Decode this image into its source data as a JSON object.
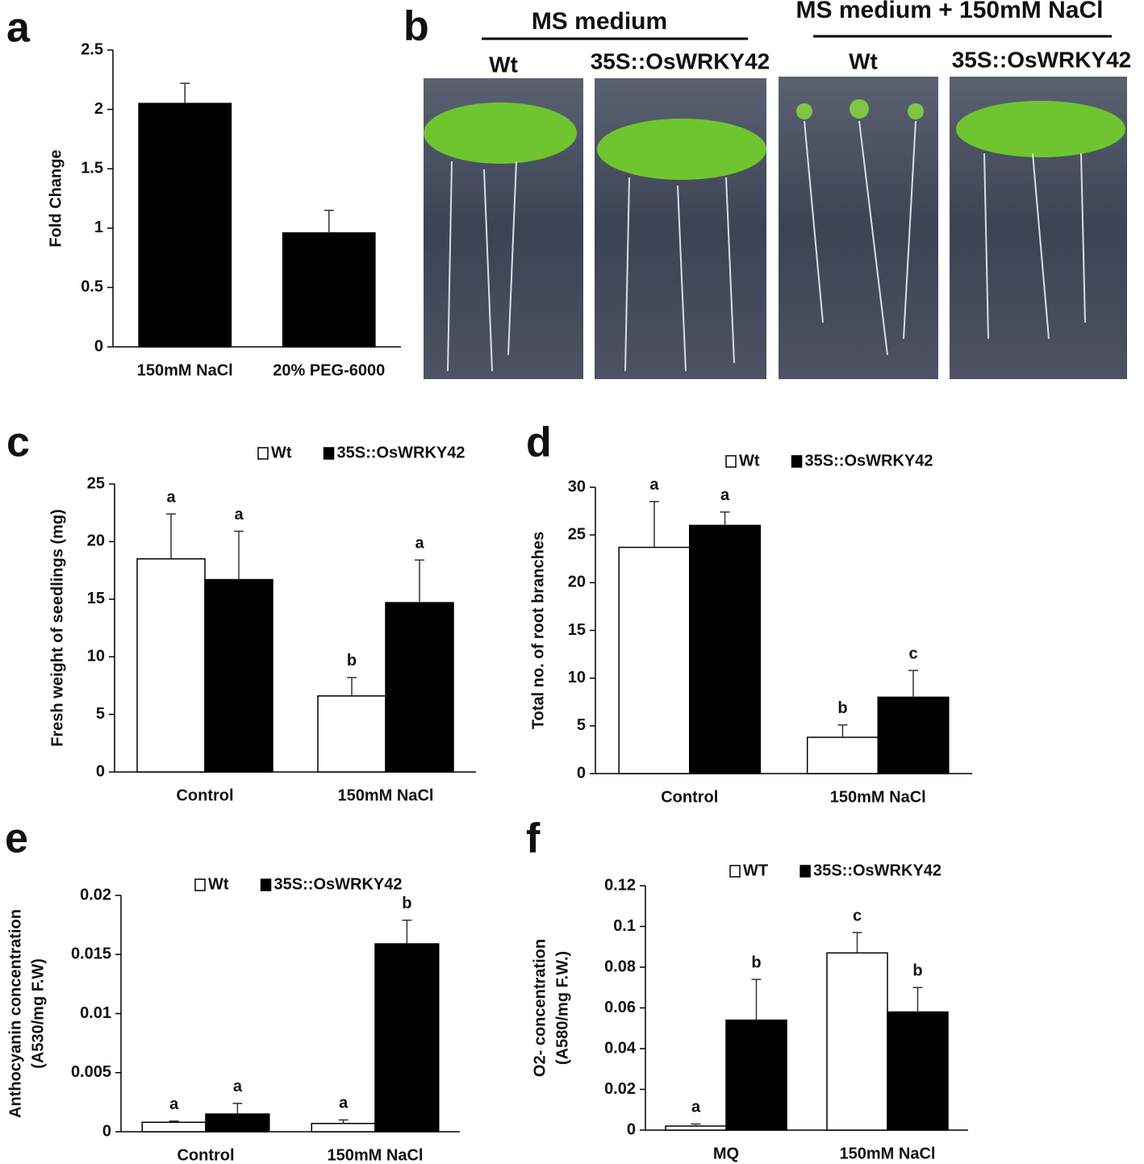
{
  "chart_data": [
    {
      "type": "bar",
      "panel": "a",
      "ylabel": "Fold Change",
      "categories": [
        "150mM NaCl",
        "20% PEG-6000"
      ],
      "values": [
        2.05,
        0.96
      ],
      "errors": [
        0.17,
        0.19
      ],
      "color": "#000000",
      "ylim": [
        0,
        2.5
      ],
      "yticks": [
        0,
        0.5,
        1,
        1.5,
        2,
        2.5
      ]
    },
    {
      "type": "bar",
      "panel": "c",
      "ylabel": "Fresh weight of seedlings (mg)",
      "categories": [
        "Control",
        "150mM NaCl"
      ],
      "series": [
        {
          "name": "Wt",
          "color": "#ffffff",
          "values": [
            18.5,
            6.6
          ],
          "errors": [
            3.9,
            1.6
          ],
          "letters": [
            "a",
            "b"
          ]
        },
        {
          "name": "35S::OsWRKY42",
          "color": "#000000",
          "values": [
            16.7,
            14.7
          ],
          "errors": [
            4.2,
            3.7
          ],
          "letters": [
            "a",
            "a"
          ]
        }
      ],
      "ylim": [
        0,
        25
      ],
      "yticks": [
        0,
        5,
        10,
        15,
        20,
        25
      ]
    },
    {
      "type": "bar",
      "panel": "d",
      "ylabel": "Total no. of  root branches",
      "categories": [
        "Control",
        "150mM NaCl"
      ],
      "series": [
        {
          "name": "Wt",
          "color": "#ffffff",
          "values": [
            23.7,
            3.8
          ],
          "errors": [
            4.8,
            1.3
          ],
          "letters": [
            "a",
            "b"
          ]
        },
        {
          "name": "35S::OsWRKY42",
          "color": "#000000",
          "values": [
            26.0,
            8.0
          ],
          "errors": [
            1.4,
            2.8
          ],
          "letters": [
            "a",
            "c"
          ]
        }
      ],
      "ylim": [
        0,
        30
      ],
      "yticks": [
        0,
        5,
        10,
        15,
        20,
        25,
        30
      ]
    },
    {
      "type": "bar",
      "panel": "e",
      "ylabel": [
        "Anthocyanin concentration",
        "(A530/mg F.W)"
      ],
      "categories": [
        "Control",
        "150mM NaCl"
      ],
      "series": [
        {
          "name": "Wt",
          "color": "#ffffff",
          "values": [
            0.0008,
            0.0007
          ],
          "errors": [
            0.0001,
            0.0003
          ],
          "letters": [
            "a",
            "a"
          ]
        },
        {
          "name": "35S::OsWRKY42",
          "color": "#000000",
          "values": [
            0.0015,
            0.0159
          ],
          "errors": [
            0.0009,
            0.002
          ],
          "letters": [
            "a",
            "b"
          ]
        }
      ],
      "ylim": [
        0,
        0.02
      ],
      "yticks": [
        0,
        0.005,
        0.01,
        0.015,
        0.02
      ]
    },
    {
      "type": "bar",
      "panel": "f",
      "ylabel": [
        "O2- concentration",
        "(A580/mg F.W.)"
      ],
      "categories": [
        "MQ",
        "150mM NaCl"
      ],
      "series": [
        {
          "name": "WT",
          "color": "#ffffff",
          "values": [
            0.002,
            0.087
          ],
          "errors": [
            0.001,
            0.01
          ],
          "letters": [
            "a",
            "c"
          ]
        },
        {
          "name": "35S::OsWRKY42",
          "color": "#000000",
          "values": [
            0.054,
            0.058
          ],
          "errors": [
            0.02,
            0.012
          ],
          "letters": [
            "b",
            "b"
          ]
        }
      ],
      "ylim": [
        0,
        0.12
      ],
      "yticks": [
        0,
        0.02,
        0.04,
        0.06,
        0.08,
        0.1,
        0.12
      ]
    }
  ],
  "photo_panel": {
    "label": "b",
    "groups": [
      {
        "title": "MS medium",
        "columns": [
          "Wt",
          "35S::OsWRKY42"
        ]
      },
      {
        "title": "MS medium + 150mM NaCl",
        "columns": [
          "Wt",
          "35S::OsWRKY42"
        ]
      }
    ]
  }
}
